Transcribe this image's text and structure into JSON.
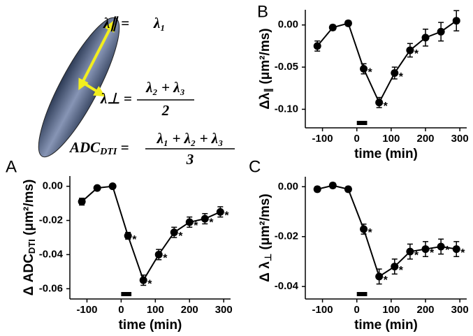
{
  "diagram": {
    "parallel": {
      "lhs": "λ∥ =",
      "rhs": "λ₁"
    },
    "perpendicular": {
      "lhs": "λ⊥ =",
      "numerator": "λ₂ + λ₃",
      "denominator": "2"
    },
    "adc": {
      "lhs": [
        "ADC",
        "DTI",
        " ="
      ],
      "numerator": "λ₁ + λ₂ + λ₃",
      "denominator": "3"
    }
  },
  "chart_data": [
    {
      "type": "line",
      "panel": "A",
      "xlabel": "time (min)",
      "ylabel": [
        "Δ ADC",
        "DTI",
        " (μm²/ms)"
      ],
      "x": [
        -115,
        -70,
        -25,
        20,
        65,
        110,
        155,
        200,
        245,
        290
      ],
      "series": [
        {
          "color": "#000000",
          "values": [
            -0.009,
            -0.001,
            0.0,
            -0.029,
            -0.055,
            -0.04,
            -0.027,
            -0.021,
            -0.019,
            -0.015
          ],
          "error": [
            0.002,
            0.001,
            0.001,
            0.002,
            0.003,
            0.003,
            0.003,
            0.003,
            0.003,
            0.003
          ],
          "point_labels": [
            null,
            null,
            null,
            "*",
            "*",
            "*",
            "*",
            "*",
            "*",
            "*"
          ]
        }
      ],
      "stimulus_x": [
        0,
        30
      ],
      "xlim": [
        -150,
        320
      ],
      "xticks": [
        -100,
        0,
        100,
        200,
        300
      ],
      "ylim": [
        -0.066,
        0.006
      ],
      "yticks": [
        {
          "value": 0,
          "label": "0.00"
        },
        -0.02,
        -0.04,
        -0.06
      ]
    },
    {
      "type": "line",
      "panel": "B",
      "xlabel": "time (min)",
      "ylabel": [
        "Δλ",
        "∥",
        " (μm²/ms)"
      ],
      "x": [
        -115,
        -70,
        -25,
        20,
        65,
        110,
        155,
        200,
        245,
        290
      ],
      "series": [
        {
          "color": "#000000",
          "values": [
            -0.025,
            -0.003,
            0.002,
            -0.052,
            -0.092,
            -0.057,
            -0.03,
            -0.015,
            -0.008,
            0.005
          ],
          "error": [
            0.006,
            0.003,
            0.003,
            0.006,
            0.006,
            0.007,
            0.008,
            0.01,
            0.011,
            0.012
          ],
          "point_labels": [
            null,
            null,
            null,
            "*",
            "*",
            "*",
            "*",
            null,
            null,
            null
          ]
        }
      ],
      "stimulus_x": [
        0,
        30
      ],
      "xlim": [
        -150,
        320
      ],
      "xticks": [
        -100,
        0,
        100,
        200,
        300
      ],
      "ylim": [
        -0.122,
        0.018
      ],
      "yticks": [
        {
          "value": 0,
          "label": "0.00"
        },
        -0.05,
        {
          "value": -0.1,
          "label": "-0.10"
        }
      ]
    },
    {
      "type": "line",
      "panel": "C",
      "xlabel": "time (min)",
      "ylabel": [
        "Δ λ",
        "⊥",
        " (μm²/ms)"
      ],
      "x": [
        -115,
        -70,
        -25,
        20,
        65,
        110,
        155,
        200,
        245,
        290
      ],
      "series": [
        {
          "color": "#000000",
          "values": [
            -0.001,
            0.0005,
            -0.001,
            -0.017,
            -0.036,
            -0.032,
            -0.026,
            -0.025,
            -0.024,
            -0.025
          ],
          "error": [
            0.001,
            0.001,
            0.001,
            0.002,
            0.003,
            0.003,
            0.003,
            0.003,
            0.003,
            0.003
          ],
          "point_labels": [
            null,
            null,
            null,
            "*",
            "*",
            "*",
            "*",
            "*",
            "*",
            "*"
          ]
        }
      ],
      "stimulus_x": [
        0,
        30
      ],
      "xlim": [
        -150,
        320
      ],
      "xticks": [
        -100,
        0,
        100,
        200,
        300
      ],
      "ylim": [
        -0.045,
        0.004
      ],
      "yticks": [
        {
          "value": 0,
          "label": "0.00"
        },
        -0.02,
        -0.04
      ]
    }
  ]
}
